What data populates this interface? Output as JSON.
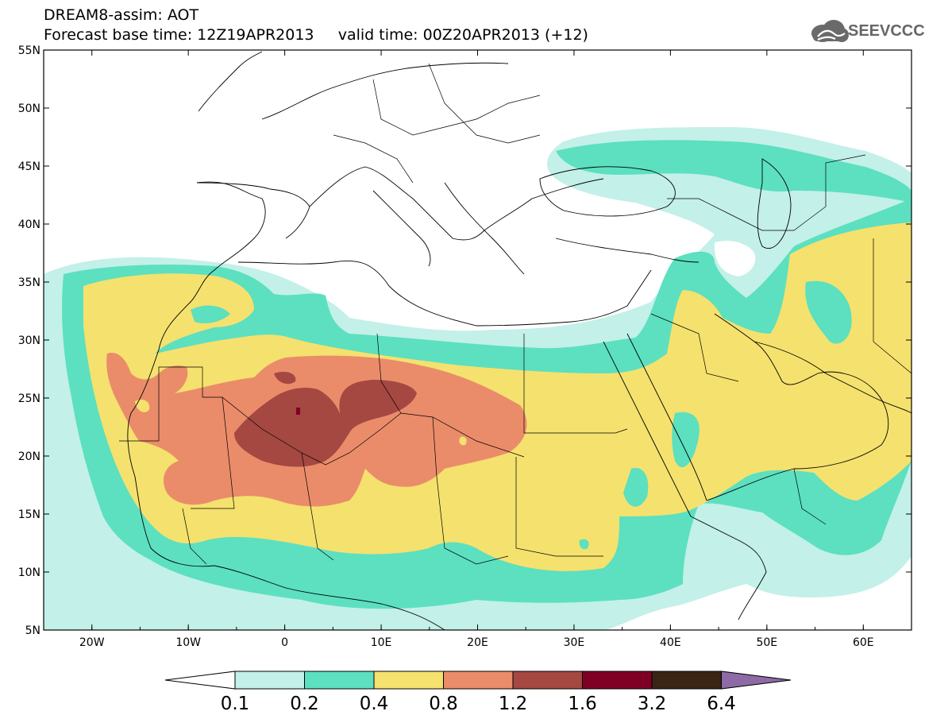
{
  "title": {
    "line1": "DREAM8-assim: AOT",
    "line2": "Forecast base time: 12Z19APR2013     valid time: 00Z20APR2013 (+12)"
  },
  "logo": {
    "text": "SEEVCCC",
    "icon": "cloud-icon"
  },
  "map": {
    "lat_labels": [
      "55N",
      "50N",
      "45N",
      "40N",
      "35N",
      "30N",
      "25N",
      "20N",
      "15N",
      "10N",
      "5N"
    ],
    "lon_labels": [
      "20W",
      "10W",
      "0",
      "10E",
      "20E",
      "30E",
      "40E",
      "50E",
      "60E"
    ],
    "lat_range": [
      5,
      55
    ],
    "lon_range": [
      -25,
      65
    ],
    "field_colors": {
      "background": "#ffffff",
      "c01": "#c3f0e8",
      "c02": "#5ce0c0",
      "c04": "#f5e16e",
      "c08": "#ea8c6a",
      "c12": "#a54842",
      "c16": "#7f0024",
      "coast": "#000000"
    }
  },
  "colorbar": {
    "labels": [
      "0.1",
      "0.2",
      "0.4",
      "0.8",
      "1.2",
      "1.6",
      "3.2",
      "6.4"
    ],
    "colors": [
      "#ffffff",
      "#c3f0e8",
      "#5ce0c0",
      "#f5e16e",
      "#ea8c6a",
      "#a54842",
      "#7f0024",
      "#3a2414",
      "#8e6aa6"
    ]
  }
}
